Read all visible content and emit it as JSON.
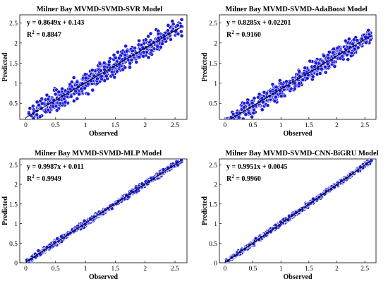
{
  "chart_data": [
    {
      "type": "scatter",
      "title": "Milner Bay MVMD-SVMD-SVR Model",
      "xlabel": "Observed",
      "ylabel": "Predicted",
      "equation": "y = 0.8649x + 0.143",
      "r2_prefix": "R",
      "r2_sup": "2",
      "r2_value": " = 0.8847",
      "xlim": [
        -0.1,
        2.7
      ],
      "ylim": [
        0.1,
        2.7
      ],
      "xticks": [
        0,
        0.5,
        1,
        1.5,
        2,
        2.5
      ],
      "yticks": [
        0.5,
        1,
        1.5,
        2,
        2.5
      ],
      "fit": {
        "slope": 0.8649,
        "intercept": 0.143
      },
      "spread": 0.17,
      "n_points": 650,
      "point_color": "#1a1adb"
    },
    {
      "type": "scatter",
      "title": "Milner Bay MVMD-SVMD-AdaBoost Model",
      "xlabel": "Observed",
      "ylabel": "Predicted",
      "equation": "y = 0.8285x + 0.02201",
      "r2_prefix": "R",
      "r2_sup": "2",
      "r2_value": " = 0.9160",
      "xlim": [
        -0.1,
        2.7
      ],
      "ylim": [
        0.1,
        2.7
      ],
      "xticks": [
        0,
        0.5,
        1,
        1.5,
        2,
        2.5
      ],
      "yticks": [
        0.5,
        1,
        1.5,
        2,
        2.5
      ],
      "fit": {
        "slope": 0.8285,
        "intercept": 0.02201
      },
      "spread": 0.14,
      "n_points": 650,
      "point_color": "#1a1adb"
    },
    {
      "type": "scatter",
      "title": "Milner Bay MVMD-SVMD-MLP Model",
      "xlabel": "Observed",
      "ylabel": "Predicted",
      "equation": "y = 0.9987x + 0.011",
      "r2_prefix": "R",
      "r2_sup": "2",
      "r2_value": " = 0.9949",
      "xlim": [
        -0.1,
        2.7
      ],
      "ylim": [
        0,
        2.65
      ],
      "xticks": [
        0,
        0.5,
        1,
        1.5,
        2,
        2.5
      ],
      "yticks": [
        0,
        0.5,
        1,
        1.5,
        2,
        2.5
      ],
      "fit": {
        "slope": 0.9987,
        "intercept": 0.011
      },
      "spread": 0.04,
      "n_points": 650,
      "point_color": "#1a1adb"
    },
    {
      "type": "scatter",
      "title": "Milner Bay MVMD-SVMD-CNN-BiGRU Model",
      "xlabel": "Observed",
      "ylabel": "Predicted",
      "equation": "y = 0.9951x + 0.0045",
      "r2_prefix": "R",
      "r2_sup": "2",
      "r2_value": " = 0.9960",
      "xlim": [
        -0.1,
        2.7
      ],
      "ylim": [
        0,
        2.65
      ],
      "xticks": [
        0,
        0.5,
        1,
        1.5,
        2,
        2.5
      ],
      "yticks": [
        0,
        0.5,
        1,
        1.5,
        2,
        2.5
      ],
      "fit": {
        "slope": 0.9951,
        "intercept": 0.0045
      },
      "spread": 0.035,
      "n_points": 650,
      "point_color": "#1a1adb"
    }
  ]
}
